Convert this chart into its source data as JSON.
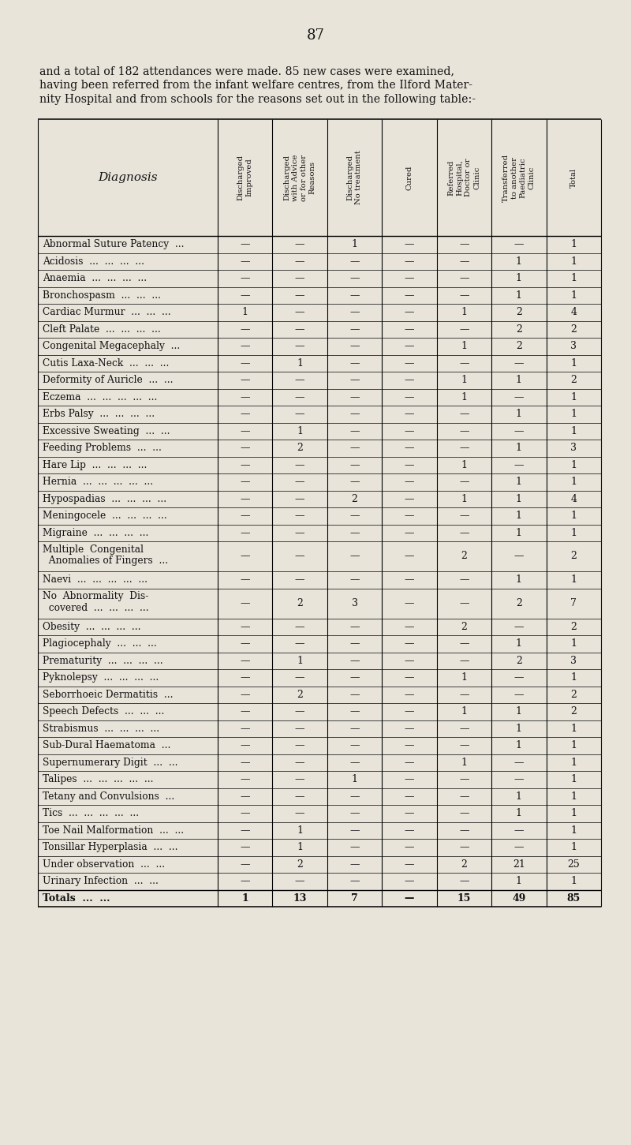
{
  "page_number": "87",
  "intro_line1": "and a total of 182 attendances were made. 85 new cases were examined,",
  "intro_line2": "having been referred from the infant welfare centres, from the Ilford Mater-",
  "intro_line3": "nity Hospital and from schools for the reasons set out in the following table:-",
  "col_headers": [
    "Discharged\nImproved",
    "Discharged\nwith Advice\nor for other\nReasons",
    "Discharged\nNo treatment",
    "Cured",
    "Referred\nHospital,\nDoctor or\nClinic",
    "Transferred\nto another\nPaediatric\nClinic",
    "Total"
  ],
  "diagnosis_label": "Diagnosis",
  "rows": [
    [
      "Abnormal Suture Patency  ...",
      "—",
      "—",
      "1",
      "—",
      "—",
      "—",
      "1"
    ],
    [
      "Acidosis  ...  ...  ...  ...",
      "—",
      "—",
      "—",
      "—",
      "—",
      "1",
      "1"
    ],
    [
      "Anaemia  ...  ...  ...  ...",
      "—",
      "—",
      "—",
      "—",
      "—",
      "1",
      "1"
    ],
    [
      "Bronchospasm  ...  ...  ...",
      "—",
      "—",
      "—",
      "—",
      "—",
      "1",
      "1"
    ],
    [
      "Cardiac Murmur  ...  ...  ...",
      "1",
      "—",
      "—",
      "—",
      "1",
      "2",
      "4"
    ],
    [
      "Cleft Palate  ...  ...  ...  ...",
      "—",
      "—",
      "—",
      "—",
      "—",
      "2",
      "2"
    ],
    [
      "Congenital Megacephaly  ...",
      "—",
      "—",
      "—",
      "—",
      "1",
      "2",
      "3"
    ],
    [
      "Cutis Laxa-Neck  ...  ...  ...",
      "—",
      "1",
      "—",
      "—",
      "—",
      "—",
      "1"
    ],
    [
      "Deformity of Auricle  ...  ...",
      "—",
      "—",
      "—",
      "—",
      "1",
      "1",
      "2"
    ],
    [
      "Eczema  ...  ...  ...  ...  ...",
      "—",
      "—",
      "—",
      "—",
      "1",
      "—",
      "1"
    ],
    [
      "Erbs Palsy  ...  ...  ...  ...",
      "—",
      "—",
      "—",
      "—",
      "—",
      "1",
      "1"
    ],
    [
      "Excessive Sweating  ...  ...",
      "—",
      "1",
      "—",
      "—",
      "—",
      "—",
      "1"
    ],
    [
      "Feeding Problems  ...  ...",
      "—",
      "2",
      "—",
      "—",
      "—",
      "1",
      "3"
    ],
    [
      "Hare Lip  ...  ...  ...  ...",
      "—",
      "—",
      "—",
      "—",
      "1",
      "—",
      "1"
    ],
    [
      "Hernia  ...  ...  ...  ...  ...",
      "—",
      "—",
      "—",
      "—",
      "—",
      "1",
      "1"
    ],
    [
      "Hypospadias  ...  ...  ...  ...",
      "—",
      "—",
      "2",
      "—",
      "1",
      "1",
      "4"
    ],
    [
      "Meningocele  ...  ...  ...  ...",
      "—",
      "—",
      "—",
      "—",
      "—",
      "1",
      "1"
    ],
    [
      "Migraine  ...  ...  ...  ...",
      "—",
      "—",
      "—",
      "—",
      "—",
      "1",
      "1"
    ],
    [
      "Multiple  Congenital\n  Anomalies of Fingers  ...",
      "—",
      "—",
      "—",
      "—",
      "2",
      "—",
      "2"
    ],
    [
      "Naevi  ...  ...  ...  ...  ...",
      "—",
      "—",
      "—",
      "—",
      "—",
      "1",
      "1"
    ],
    [
      "No  Abnormality  Dis-\n  covered  ...  ...  ...  ...",
      "—",
      "2",
      "3",
      "—",
      "—",
      "2",
      "7"
    ],
    [
      "Obesity  ...  ...  ...  ...",
      "—",
      "—",
      "—",
      "—",
      "2",
      "—",
      "2"
    ],
    [
      "Plagiocephaly  ...  ...  ...",
      "—",
      "—",
      "—",
      "—",
      "—",
      "1",
      "1"
    ],
    [
      "Prematurity  ...  ...  ...  ...",
      "—",
      "1",
      "—",
      "—",
      "—",
      "2",
      "3"
    ],
    [
      "Pyknolepsy  ...  ...  ...  ...",
      "—",
      "—",
      "—",
      "—",
      "1",
      "—",
      "1"
    ],
    [
      "Seborrhoeic Dermatitis  ...",
      "—",
      "2",
      "—",
      "—",
      "—",
      "—",
      "2"
    ],
    [
      "Speech Defects  ...  ...  ...",
      "—",
      "—",
      "—",
      "—",
      "1",
      "1",
      "2"
    ],
    [
      "Strabismus  ...  ...  ...  ...",
      "—",
      "—",
      "—",
      "—",
      "—",
      "1",
      "1"
    ],
    [
      "Sub-Dural Haematoma  ...",
      "—",
      "—",
      "—",
      "—",
      "—",
      "1",
      "1"
    ],
    [
      "Supernumerary Digit  ...  ...",
      "—",
      "—",
      "—",
      "—",
      "1",
      "—",
      "1"
    ],
    [
      "Talipes  ...  ...  ...  ...  ...",
      "—",
      "—",
      "1",
      "—",
      "—",
      "—",
      "1"
    ],
    [
      "Tetany and Convulsions  ...",
      "—",
      "—",
      "—",
      "—",
      "—",
      "1",
      "1"
    ],
    [
      "Tics  ...  ...  ...  ...  ...",
      "—",
      "—",
      "—",
      "—",
      "—",
      "1",
      "1"
    ],
    [
      "Toe Nail Malformation  ...  ...",
      "—",
      "1",
      "—",
      "—",
      "—",
      "—",
      "1"
    ],
    [
      "Tonsillar Hyperplasia  ...  ...",
      "—",
      "1",
      "—",
      "—",
      "—",
      "—",
      "1"
    ],
    [
      "Under observation  ...  ...",
      "—",
      "2",
      "—",
      "—",
      "2",
      "21",
      "25"
    ],
    [
      "Urinary Infection  ...  ...",
      "—",
      "—",
      "—",
      "—",
      "—",
      "1",
      "1"
    ]
  ],
  "totals_row": [
    "Totals  ...  ...",
    "1",
    "13",
    "7",
    "—",
    "15",
    "49",
    "85"
  ],
  "bg_color": "#e8e4da",
  "text_color": "#111111"
}
